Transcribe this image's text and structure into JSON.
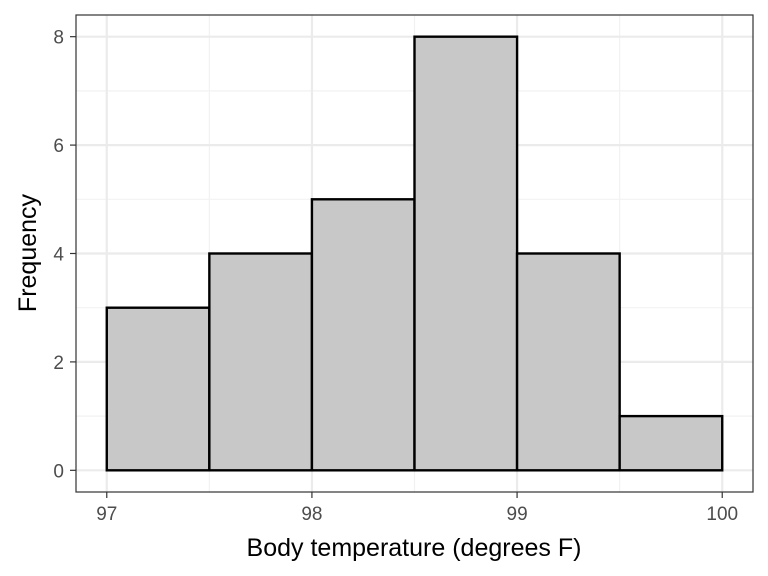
{
  "chart_data": {
    "type": "bar",
    "subtype": "histogram",
    "title": "",
    "xlabel": "Body temperature (degrees F)",
    "ylabel": "Frequency",
    "bins": [
      {
        "start": 97.0,
        "end": 97.5,
        "count": 3
      },
      {
        "start": 97.5,
        "end": 98.0,
        "count": 4
      },
      {
        "start": 98.0,
        "end": 98.5,
        "count": 5
      },
      {
        "start": 98.5,
        "end": 99.0,
        "count": 8
      },
      {
        "start": 99.0,
        "end": 99.5,
        "count": 4
      },
      {
        "start": 99.5,
        "end": 100.0,
        "count": 1
      }
    ],
    "xlim": [
      96.85,
      100.15
    ],
    "ylim": [
      -0.4,
      8.4
    ],
    "xticks": [
      97,
      98,
      99,
      100
    ],
    "xtick_labels": [
      "97",
      "98",
      "99",
      "100"
    ],
    "yticks": [
      0,
      2,
      4,
      6,
      8
    ],
    "ytick_labels": [
      "0",
      "2",
      "4",
      "6",
      "8"
    ],
    "x_minor_grid": [
      97.5,
      98.5,
      99.5
    ],
    "y_minor_grid": [
      1,
      3,
      5,
      7
    ],
    "grid": true,
    "colors": {
      "bar_fill": "#c8c8c8",
      "bar_stroke": "#000000",
      "grid_major": "#ebebeb",
      "grid_minor": "#f2f2f2",
      "panel_border": "#333333"
    }
  }
}
